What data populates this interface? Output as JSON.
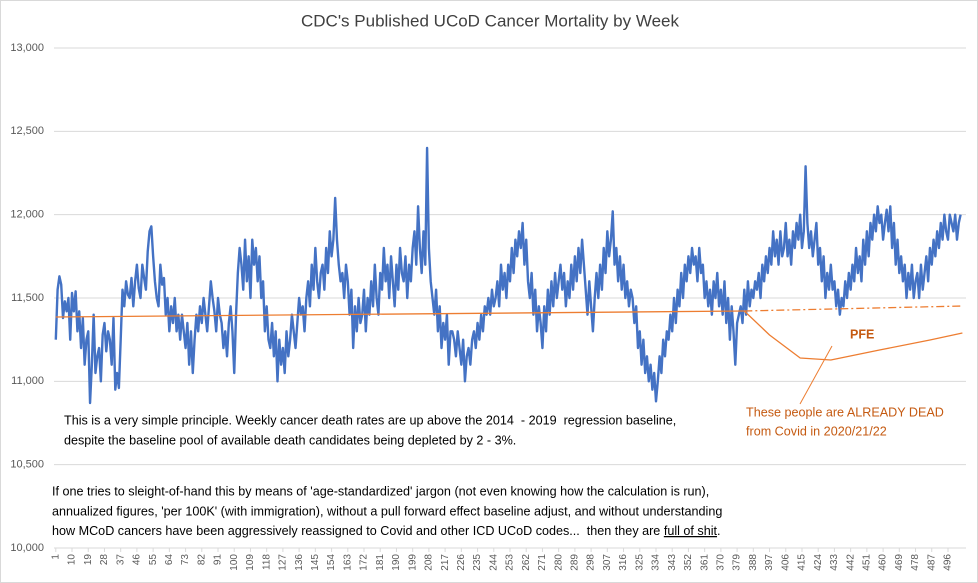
{
  "chart_data": {
    "type": "line",
    "title": "CDC's Published UCoD Cancer Mortality by Week",
    "xlim": [
      0,
      506
    ],
    "xticks": [
      1,
      10,
      19,
      28,
      37,
      46,
      55,
      64,
      73,
      82,
      91,
      100,
      109,
      118,
      127,
      136,
      145,
      154,
      163,
      172,
      181,
      190,
      199,
      208,
      217,
      226,
      235,
      244,
      253,
      262,
      271,
      280,
      289,
      298,
      307,
      316,
      325,
      334,
      343,
      352,
      361,
      370,
      379,
      388,
      397,
      406,
      415,
      424,
      433,
      442,
      451,
      460,
      469,
      478,
      487,
      496
    ],
    "ylim": [
      10000,
      13000
    ],
    "yticks": [
      {
        "value": 10000,
        "label": "10,000"
      },
      {
        "value": 10500,
        "label": "10,500"
      },
      {
        "value": 11000,
        "label": "11,000"
      },
      {
        "value": 11500,
        "label": "11,500"
      },
      {
        "value": 12000,
        "label": "12,000"
      },
      {
        "value": 12500,
        "label": "12,500"
      },
      {
        "value": 13000,
        "label": "13,000"
      }
    ],
    "grid": true,
    "series": [
      {
        "color": "#4472c4",
        "x": [
          1,
          2,
          3,
          4,
          5,
          6,
          7,
          8,
          9,
          10,
          11,
          12,
          13,
          14,
          15,
          16,
          17,
          18,
          19,
          20,
          21,
          22,
          23,
          24,
          25,
          26,
          27,
          28,
          29,
          30,
          31,
          32,
          33,
          34,
          35,
          36,
          37,
          38,
          39,
          40,
          41,
          42,
          43,
          44,
          45,
          46,
          47,
          48,
          49,
          50,
          51,
          52,
          53,
          54,
          55,
          56,
          57,
          58,
          59,
          60,
          61,
          62,
          63,
          64,
          65,
          66,
          67,
          68,
          69,
          70,
          71,
          72,
          73,
          74,
          75,
          76,
          77,
          78,
          79,
          80,
          81,
          82,
          83,
          84,
          85,
          86,
          87,
          88,
          89,
          90,
          91,
          92,
          93,
          94,
          95,
          96,
          97,
          98,
          99,
          100,
          101,
          102,
          103,
          104,
          105,
          106,
          107,
          108,
          109,
          110,
          111,
          112,
          113,
          114,
          115,
          116,
          117,
          118,
          119,
          120,
          121,
          122,
          123,
          124,
          125,
          126,
          127,
          128,
          129,
          130,
          131,
          132,
          133,
          134,
          135,
          136,
          137,
          138,
          139,
          140,
          141,
          142,
          143,
          144,
          145,
          146,
          147,
          148,
          149,
          150,
          151,
          152,
          153,
          154,
          155,
          156,
          157,
          158,
          159,
          160,
          161,
          162,
          163,
          164,
          165,
          166,
          167,
          168,
          169,
          170,
          171,
          172,
          173,
          174,
          175,
          176,
          177,
          178,
          179,
          180,
          181,
          182,
          183,
          184,
          185,
          186,
          187,
          188,
          189,
          190,
          191,
          192,
          193,
          194,
          195,
          196,
          197,
          198,
          199,
          200,
          201,
          202,
          203,
          204,
          205,
          206,
          207,
          208,
          209,
          210,
          211,
          212,
          213,
          214,
          215,
          216,
          217,
          218,
          219,
          220,
          221,
          222,
          223,
          224,
          225,
          226,
          227,
          228,
          229,
          230,
          231,
          232,
          233,
          234,
          235,
          236,
          237,
          238,
          239,
          240,
          241,
          242,
          243,
          244,
          245,
          246,
          247,
          248,
          249,
          250,
          251,
          252,
          253,
          254,
          255,
          256,
          257,
          258,
          259,
          260,
          261,
          262,
          263,
          264,
          265,
          266,
          267,
          268,
          269,
          270,
          271,
          272,
          273,
          274,
          275,
          276,
          277,
          278,
          279,
          280,
          281,
          282,
          283,
          284,
          285,
          286,
          287,
          288,
          289,
          290,
          291,
          292,
          293,
          294,
          295,
          296,
          297,
          298,
          299,
          300,
          301,
          302,
          303,
          304,
          305,
          306,
          307,
          308,
          309,
          310,
          311,
          312,
          313,
          314,
          315,
          316,
          317,
          318,
          319,
          320,
          321,
          322,
          323,
          324,
          325,
          326,
          327,
          328,
          329,
          330,
          331,
          332,
          333,
          334,
          335,
          336,
          337,
          338,
          339,
          340,
          341,
          342,
          343,
          344,
          345,
          346,
          347,
          348,
          349,
          350,
          351,
          352,
          353,
          354,
          355,
          356,
          357,
          358,
          359,
          360,
          361,
          362,
          363,
          364,
          365,
          366,
          367,
          368,
          369,
          370,
          371,
          372,
          373,
          374,
          375,
          376,
          377,
          378,
          379,
          380,
          381,
          382,
          383,
          384,
          385,
          386,
          387,
          388,
          389,
          390,
          391,
          392,
          393,
          394,
          395,
          396,
          397,
          398,
          399,
          400,
          401,
          402,
          403,
          404,
          405,
          406,
          407,
          408,
          409,
          410,
          411,
          412,
          413,
          414,
          415,
          416,
          417,
          418,
          419,
          420,
          421,
          422,
          423,
          424,
          425,
          426,
          427,
          428,
          429,
          430,
          431,
          432,
          433,
          434,
          435,
          436,
          437,
          438,
          439,
          440,
          441,
          442,
          443,
          444,
          445,
          446,
          447,
          448,
          449,
          450,
          451,
          452,
          453,
          454,
          455,
          456,
          457,
          458,
          459,
          460,
          461,
          462,
          463,
          464,
          465,
          466,
          467,
          468,
          469,
          470,
          471,
          472,
          473,
          474,
          475,
          476,
          477,
          478,
          479,
          480,
          481,
          482,
          483,
          484,
          485,
          486,
          487,
          488,
          489,
          490,
          491,
          492,
          493,
          494,
          495,
          496,
          497,
          498,
          499,
          500,
          501,
          502,
          503
        ],
        "values": [
          11250,
          11550,
          11630,
          11580,
          11380,
          11480,
          11420,
          11500,
          11250,
          11530,
          11420,
          11540,
          11300,
          11420,
          11200,
          11380,
          11100,
          11250,
          11300,
          10870,
          11100,
          11400,
          11050,
          11150,
          11200,
          11000,
          11280,
          11350,
          11180,
          11300,
          11250,
          11100,
          11380,
          10950,
          11050,
          10960,
          11250,
          11550,
          11450,
          11600,
          11520,
          11500,
          11620,
          11450,
          11600,
          11700,
          11560,
          11500,
          11700,
          11620,
          11550,
          11780,
          11900,
          11930,
          11750,
          11600,
          11500,
          11450,
          11700,
          11580,
          11620,
          11400,
          11500,
          11300,
          11450,
          11350,
          11500,
          11300,
          11400,
          11250,
          11400,
          11300,
          11200,
          11350,
          11100,
          11300,
          11050,
          11250,
          11400,
          11300,
          11450,
          11350,
          11500,
          11400,
          11300,
          11450,
          11600,
          11500,
          11420,
          11300,
          11500,
          11400,
          11350,
          11200,
          11300,
          11150,
          11350,
          11450,
          11300,
          11050,
          11400,
          11650,
          11800,
          11700,
          11550,
          11850,
          11600,
          11750,
          11500,
          11850,
          11700,
          11800,
          11600,
          11750,
          11500,
          11600,
          11300,
          11450,
          11250,
          11200,
          11350,
          11150,
          11300,
          11000,
          11250,
          11100,
          11200,
          11050,
          11300,
          11150,
          11250,
          11400,
          11300,
          11200,
          11350,
          11500,
          11400,
          11450,
          11300,
          11500,
          11600,
          11450,
          11700,
          11550,
          11800,
          11600,
          11500,
          11650,
          11700,
          11550,
          11800,
          11650,
          11900,
          11750,
          11850,
          12100,
          11850,
          11700,
          11600,
          11650,
          11500,
          11700,
          11600,
          11400,
          11550,
          11200,
          11450,
          11300,
          11500,
          11350,
          11400,
          11550,
          11300,
          11500,
          11400,
          11600,
          11450,
          11700,
          11500,
          11400,
          11650,
          11550,
          11800,
          11600,
          11700,
          11500,
          11750,
          11600,
          11450,
          11700,
          11550,
          11800,
          11650,
          11600,
          11750,
          11500,
          11700,
          11600,
          11800,
          11900,
          11700,
          12050,
          11800,
          11650,
          11900,
          11700,
          12400,
          11800,
          11600,
          11500,
          11400,
          11550,
          11300,
          11450,
          11200,
          11350,
          11250,
          11400,
          11100,
          11300,
          11300,
          11250,
          11150,
          11300,
          11200,
          11100,
          11250,
          11000,
          11150,
          11200,
          11100,
          11250,
          11300,
          11200,
          11350,
          11250,
          11400,
          11300,
          11450,
          11400,
          11500,
          11400,
          11550,
          11450,
          11500,
          11600,
          11450,
          11700,
          11550,
          11650,
          11500,
          11700,
          11600,
          11800,
          11650,
          11850,
          11750,
          11900,
          11800,
          11950,
          11700,
          11850,
          11600,
          11500,
          11650,
          11400,
          11550,
          11300,
          11450,
          11350,
          11200,
          11450,
          11300,
          11550,
          11400,
          11600,
          11450,
          11650,
          11500,
          11600,
          11700,
          11550,
          11650,
          11450,
          11600,
          11500,
          11700,
          11550,
          11750,
          11600,
          11800,
          11650,
          11850,
          11700,
          11550,
          11400,
          11600,
          11450,
          11300,
          11500,
          11650,
          11500,
          11700,
          11550,
          11800,
          11650,
          11900,
          11750,
          11850,
          12020,
          11700,
          11800,
          11600,
          11750,
          11550,
          11700,
          11500,
          11600,
          11450,
          11550,
          11500,
          11350,
          11450,
          11200,
          11300,
          11100,
          11250,
          11050,
          11150,
          11000,
          11100,
          10950,
          11050,
          10880,
          11000,
          11150,
          11050,
          11250,
          11150,
          11300,
          11250,
          11400,
          11300,
          11500,
          11350,
          11550,
          11450,
          11650,
          11500,
          11700,
          11600,
          11750,
          11650,
          11800,
          11700,
          11750,
          11600,
          11800,
          11650,
          11700,
          11500,
          11600,
          11450,
          11550,
          11400,
          11600,
          11500,
          11650,
          11450,
          11550,
          11400,
          11600,
          11350,
          11500,
          11250,
          11450,
          11300,
          11100,
          11350,
          11400,
          11450,
          11350,
          11550,
          11400,
          11600,
          11450,
          11550,
          11500,
          11600,
          11550,
          11650,
          11500,
          11700,
          11600,
          11750,
          11650,
          11800,
          11700,
          11900,
          11750,
          11850,
          11700,
          11900,
          11750,
          11800,
          11950,
          11750,
          11850,
          11700,
          11900,
          11800,
          11950,
          11850,
          12000,
          11800,
          11900,
          12290,
          11950,
          11800,
          11900,
          11750,
          11850,
          11950,
          11700,
          11800,
          11600,
          11750,
          11500,
          11650,
          11550,
          11700,
          11550,
          11600,
          11450,
          11550,
          11400,
          11500,
          11450,
          11600,
          11500,
          11650,
          11550,
          11700,
          11600,
          11800,
          11650,
          11750,
          11600,
          11850,
          11700,
          11900,
          11750,
          11950,
          11850,
          12000,
          11900,
          12050,
          11950,
          12000,
          11850,
          11950,
          12030,
          11900,
          12050,
          11800,
          11950,
          11700,
          11850,
          11650,
          11750,
          11600,
          11700,
          11500,
          11650,
          11550,
          11700,
          11500,
          11600,
          11650,
          11500,
          11700,
          11550,
          11650,
          11750,
          11600,
          11800,
          11700,
          11850,
          11750,
          11900,
          11800,
          11950,
          11850,
          12000,
          11900,
          11850,
          12000,
          11950,
          11900,
          12000,
          11850,
          11950,
          12000
        ]
      },
      {
        "color": "#ed7d31",
        "x": [
          1,
          383
        ],
        "values": [
          11386,
          11422
        ]
      },
      {
        "color": "#ed7d31",
        "dash": true,
        "x": [
          383,
          504
        ],
        "values": [
          11422,
          11452
        ]
      },
      {
        "color": "#ed7d31",
        "x": [
          383,
          397,
          414,
          431,
          458,
          486,
          504
        ],
        "values": [
          11422,
          11278,
          11140,
          11128,
          11188,
          11248,
          11290
        ]
      }
    ],
    "annotations": {
      "label": "PFE",
      "callout": [
        "These people are ALREADY DEAD",
        "from Covid in 2020/21/22"
      ]
    },
    "notes": [
      "This is a very simple principle. Weekly cancer death rates are up above the 2014  - 2019  regression baseline,",
      "despite the baseline pool of available death candidates being depleted by 2 - 3%.",
      "If one tries to sleight-of-hand this by means of 'age-standardized' jargon (not even knowing how the calculation is run),",
      "annualized figures, 'per 100K' (with immigration), without a pull forward effect baseline adjust, and without understanding",
      "how MCoD cancers have been aggressively reassigned to Covid and other ICD UCoD codes...  then they are"
    ],
    "underlined": "full of shit",
    "end": "."
  }
}
